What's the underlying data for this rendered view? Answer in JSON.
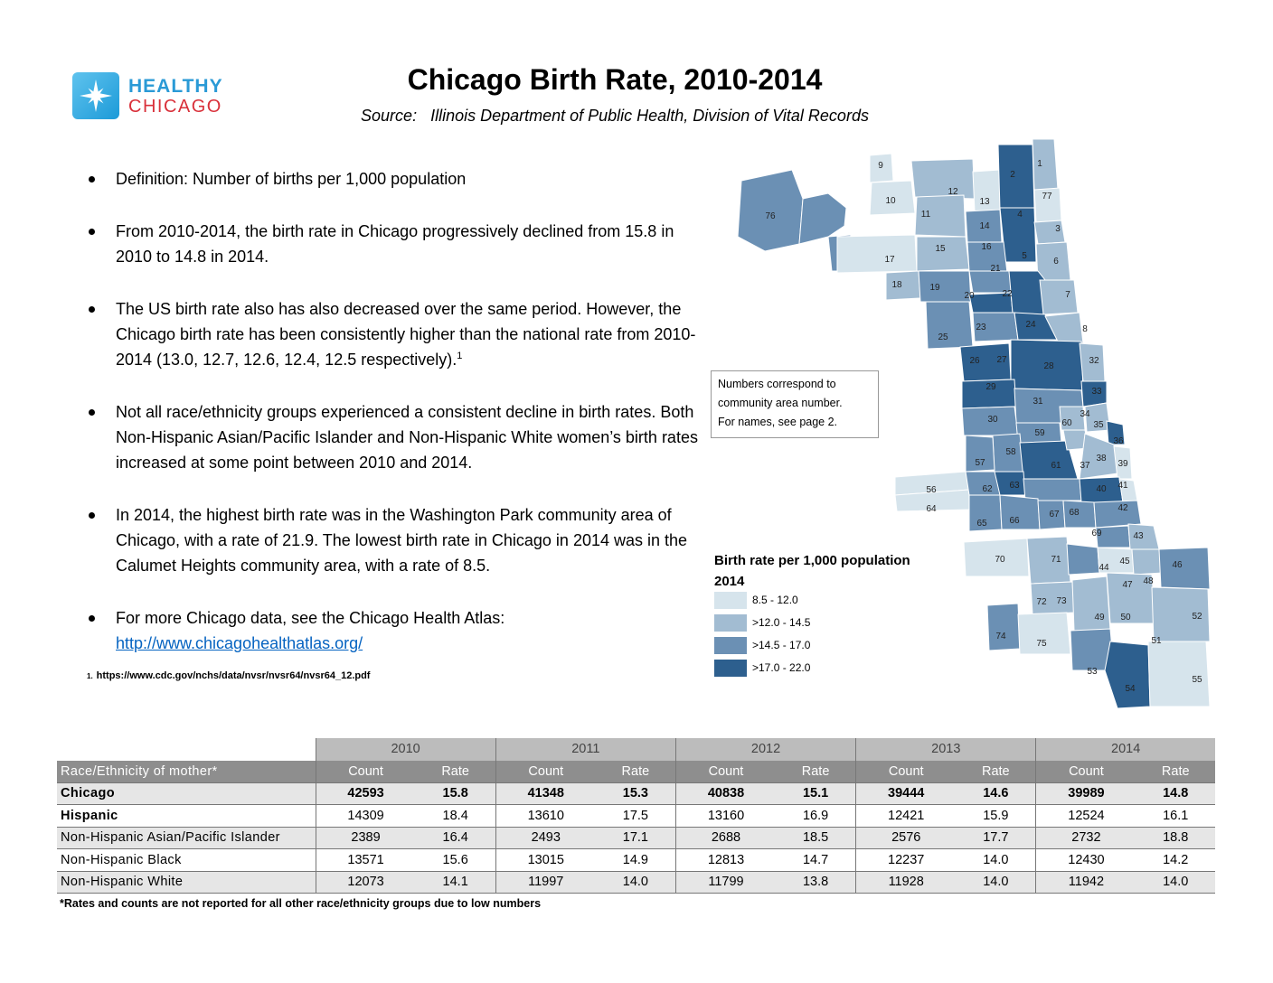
{
  "logo": {
    "line1": "HEALTHY",
    "line2": "CHICAGO"
  },
  "title": "Chicago Birth Rate, 2010-2014",
  "source": "Source:   Illinois Department of Public Health, Division of Vital Records",
  "bullets": {
    "b1": "Definition: Number of births per 1,000 population",
    "b2": "From 2010-2014, the birth rate in Chicago progressively declined from 15.8 in 2010 to 14.8 in 2014.",
    "b3": "The US birth rate also has also decreased over the same period. However, the Chicago birth rate has been consistently higher than the national rate from 2010-2014 (13.0, 12.7, 12.6, 12.4, 12.5 respectively).",
    "b3_sup": "1",
    "b4": "Not all race/ethnicity groups experienced a consistent decline in birth rates.  Both Non-Hispanic Asian/Pacific Islander and Non-Hispanic White women’s birth rates increased at some point between 2010 and 2014.",
    "b5": "In 2014, the highest birth rate was in the Washington Park community area of Chicago, with a rate of 21.9.  The lowest birth rate in Chicago in 2014 was in the Calumet Heights community area, with a rate of 8.5.",
    "b6": "For more Chicago data, see the Chicago Health Atlas:",
    "b6_link": "http://www.chicagohealthatlas.org/"
  },
  "footnote1": {
    "num": "1.",
    "text": "https://www.cdc.gov/nchs/data/nvsr/nvsr64/nvsr64_12.pdf"
  },
  "map": {
    "note": [
      "Numbers correspond to",
      "community area number.",
      "For names, see page 2."
    ],
    "legend_title": "Birth rate per 1,000 population",
    "legend_year": "2014",
    "legend": [
      {
        "label": "8.5 - 12.0",
        "color": "#d6e4ec"
      },
      {
        "label": ">12.0 - 14.5",
        "color": "#a2bcd2"
      },
      {
        "label": ">14.5 - 17.0",
        "color": "#6b90b4"
      },
      {
        "label": ">17.0 - 22.0",
        "color": "#2d5f8e"
      }
    ]
  },
  "table": {
    "years": [
      "2010",
      "2011",
      "2012",
      "2013",
      "2014"
    ],
    "row_header": "Race/Ethnicity of mother*",
    "count_label": "Count",
    "rate_label": "Rate",
    "rows": [
      {
        "name": "Chicago",
        "values": [
          "42593",
          "15.8",
          "41348",
          "15.3",
          "40838",
          "15.1",
          "39444",
          "14.6",
          "39989",
          "14.8"
        ]
      },
      {
        "name": "Hispanic",
        "values": [
          "14309",
          "18.4",
          "13610",
          "17.5",
          "13160",
          "16.9",
          "12421",
          "15.9",
          "12524",
          "16.1"
        ]
      },
      {
        "name": "Non-Hispanic Asian/Pacific Islander",
        "values": [
          "2389",
          "16.4",
          "2493",
          "17.1",
          "2688",
          "18.5",
          "2576",
          "17.7",
          "2732",
          "18.8"
        ]
      },
      {
        "name": "Non-Hispanic Black",
        "values": [
          "13571",
          "15.6",
          "13015",
          "14.9",
          "12813",
          "14.7",
          "12237",
          "14.0",
          "12430",
          "14.2"
        ]
      },
      {
        "name": "Non-Hispanic White",
        "values": [
          "12073",
          "14.1",
          "11997",
          "14.0",
          "11799",
          "13.8",
          "11928",
          "14.0",
          "11942",
          "14.0"
        ]
      }
    ]
  },
  "footnote2": "*Rates and counts are not reported for all other race/ethnicity groups due to low numbers"
}
